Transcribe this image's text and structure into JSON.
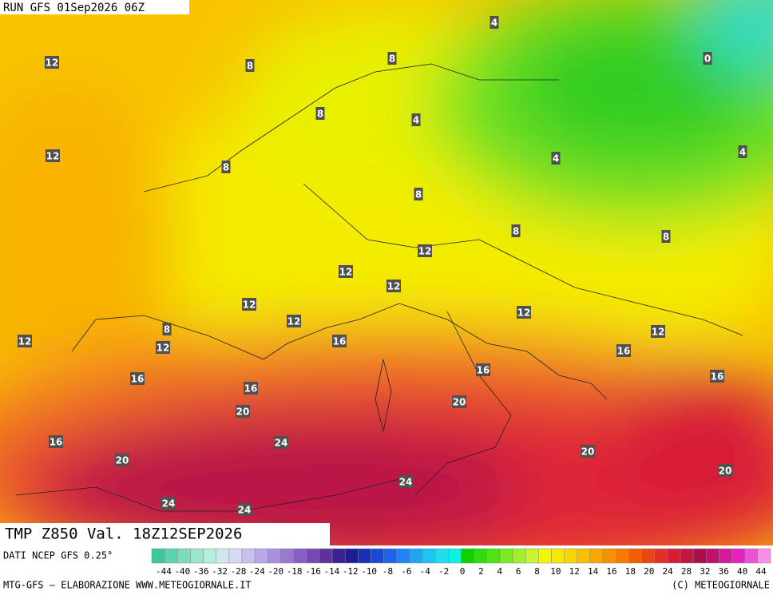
{
  "header": {
    "run": "RUN GFS 01Sep2026 06Z"
  },
  "footer": {
    "title": "TMP Z850 Val. 18Z12SEP2026",
    "source": "DATI NCEP GFS 0.25°",
    "credit": "MTG-GFS – ELABORAZIONE WWW.METEOGIORNALE.IT",
    "copyright": "(C) METEOGIORNALE"
  },
  "legend": {
    "labels": [
      "-44",
      "-40",
      "-36",
      "-32",
      "-28",
      "-24",
      "-20",
      "-18",
      "-16",
      "-14",
      "-12",
      "-10",
      "-8",
      "-6",
      "-4",
      "-2",
      "0",
      "2",
      "4",
      "6",
      "8",
      "10",
      "12",
      "14",
      "16",
      "18",
      "20",
      "24",
      "28",
      "32",
      "36",
      "40",
      "44"
    ],
    "colors": [
      "#3ec8a0",
      "#5cd2ae",
      "#7adcbc",
      "#98e6cc",
      "#b4eedc",
      "#cfe8f0",
      "#d8d8f4",
      "#c8c0ee",
      "#b8a8e6",
      "#a890dc",
      "#9878d0",
      "#8860c4",
      "#7848b4",
      "#6030a0",
      "#3a2090",
      "#201c98",
      "#1830b8",
      "#1848d8",
      "#1c64f0",
      "#2084f8",
      "#20a4f8",
      "#20c4f4",
      "#20dcec",
      "#10f0e0",
      "#10d000",
      "#30dc10",
      "#50e418",
      "#78ec20",
      "#a0f028",
      "#c8f430",
      "#f0f800",
      "#f8e800",
      "#f8d400",
      "#f8c000",
      "#f8a800",
      "#f89000",
      "#f87800",
      "#f06000",
      "#e84818",
      "#e03028",
      "#d81c38",
      "#c01840",
      "#a81048",
      "#c01070",
      "#d81898",
      "#e820c0",
      "#f050d8",
      "#f890e8"
    ]
  },
  "map_labels": [
    "4",
    "12",
    "8",
    "8",
    "0",
    "8",
    "4",
    "12",
    "8",
    "4",
    "4",
    "8",
    "8",
    "8",
    "12",
    "12",
    "12",
    "12",
    "12",
    "12",
    "8",
    "12",
    "12",
    "16",
    "12",
    "16",
    "16",
    "16",
    "16",
    "16",
    "20",
    "20",
    "24",
    "16",
    "20",
    "20",
    "20",
    "24",
    "24",
    "24"
  ]
}
